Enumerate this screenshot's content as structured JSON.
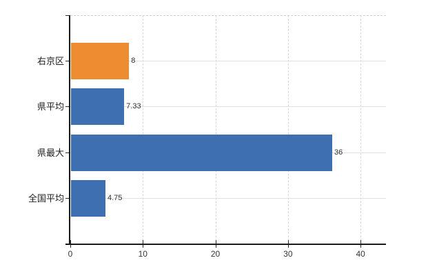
{
  "chart_data": {
    "type": "bar",
    "orientation": "horizontal",
    "title": "",
    "xlabel": "",
    "ylabel": "",
    "legend_position": "none",
    "grid": true,
    "categories": [
      "右京区",
      "県平均",
      "県最大",
      "全国平均"
    ],
    "values": [
      8,
      7.33,
      36,
      4.75
    ],
    "value_labels": [
      "8",
      "7.33",
      "36",
      "4.75"
    ],
    "bar_colors": [
      "#ee8c31",
      "#3e6fb0",
      "#3e6fb0",
      "#3e6fb0"
    ],
    "x_ticks": [
      0,
      10,
      20,
      30,
      40
    ],
    "x_tick_labels": [
      "0",
      "10",
      "20",
      "30",
      "40"
    ],
    "xlim": [
      0,
      43.5
    ],
    "colors": {
      "highlight_bar": "#ee8c31",
      "default_bar": "#3e6fb0",
      "vertical_gridline": "#d6d6d6",
      "horizontal_gridline": "#dde2dd",
      "axis": "#1a1a1a",
      "label_text": "#303030"
    }
  }
}
